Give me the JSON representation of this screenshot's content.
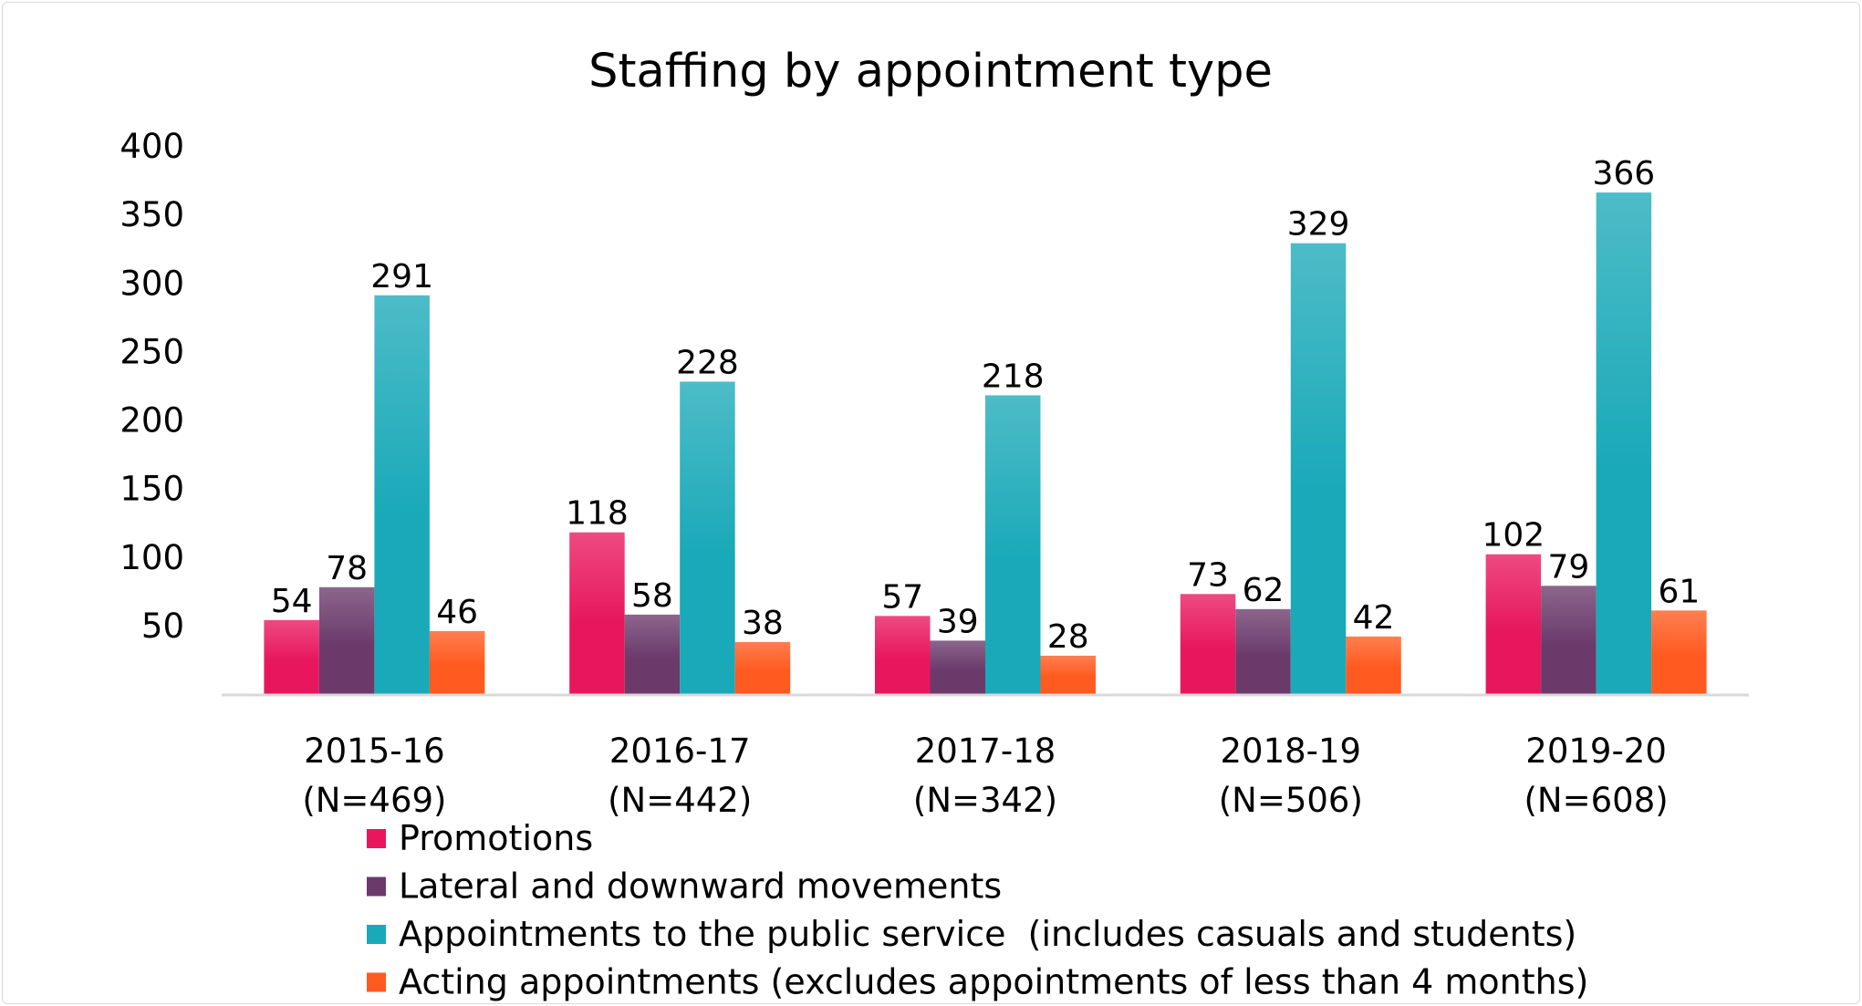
{
  "chart_data": {
    "type": "bar",
    "title": "Staffing by appointment type",
    "xlabel": "",
    "ylabel": "",
    "ylim": [
      0,
      400
    ],
    "yticks": [
      50,
      100,
      150,
      200,
      250,
      300,
      350,
      400
    ],
    "categories": [
      [
        "2015-16",
        "(N=469)"
      ],
      [
        "2016-17",
        "(N=442)"
      ],
      [
        "2017-18",
        "(N=342)"
      ],
      [
        "2018-19",
        "(N=506)"
      ],
      [
        "2019-20",
        "(N=608)"
      ]
    ],
    "series": [
      {
        "name": "Promotions",
        "color": "#e8175d",
        "values": [
          54,
          118,
          57,
          73,
          102
        ]
      },
      {
        "name": "Lateral and downward movements",
        "color": "#6b3a6b",
        "values": [
          78,
          58,
          39,
          62,
          79
        ]
      },
      {
        "name": "Appointments to the public service  (includes casuals and students)",
        "color": "#1aa9b8",
        "values": [
          291,
          228,
          218,
          329,
          366
        ]
      },
      {
        "name": "Acting appointments (excludes appointments of less than 4 months)",
        "color": "#ff5a1f",
        "values": [
          46,
          38,
          28,
          42,
          61
        ]
      }
    ],
    "grid": false,
    "data_labels": true,
    "legend_position": "bottom-left"
  }
}
